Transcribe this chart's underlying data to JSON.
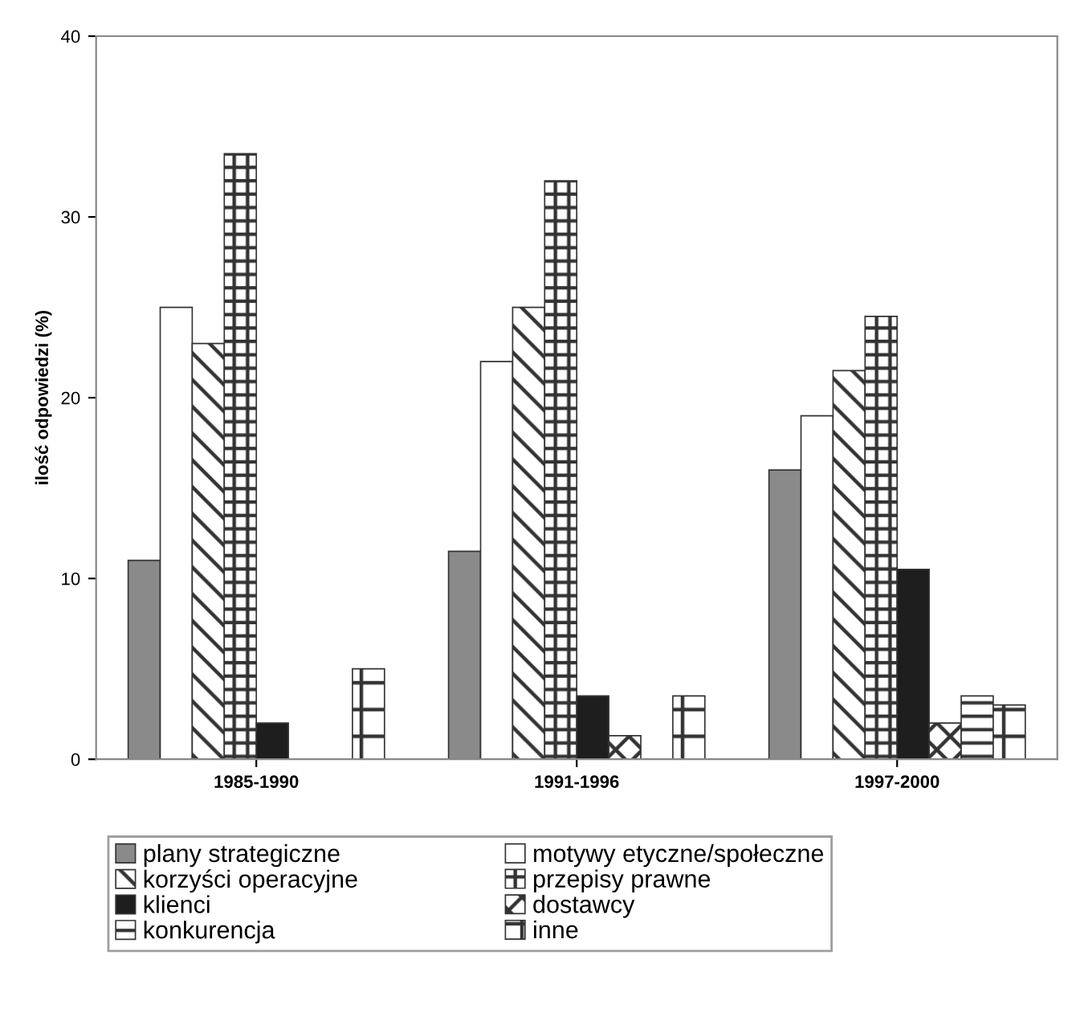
{
  "chart_data": {
    "type": "bar",
    "ylabel": "ilość odpowiedzi (%)",
    "categories": [
      "1985-1990",
      "1991-1996",
      "1997-2000"
    ],
    "series": [
      {
        "name": "plany strategiczne",
        "color": "#8a8a8a",
        "values": [
          11,
          11.5,
          16
        ]
      },
      {
        "name": "motywy etyczne/społeczne",
        "color": "#ffffff",
        "values": [
          25,
          22,
          19
        ]
      },
      {
        "name": "korzyści operacyjne",
        "color": "#333333",
        "values": [
          23,
          25,
          21.5
        ]
      },
      {
        "name": "przepisy prawne",
        "color": "#333333",
        "values": [
          33.5,
          32,
          24.5
        ]
      },
      {
        "name": "klienci",
        "color": "#1e1e1e",
        "values": [
          2,
          3.5,
          10.5
        ]
      },
      {
        "name": "dostawcy",
        "color": "#333333",
        "values": [
          0,
          1.3,
          2
        ]
      },
      {
        "name": "konkurencja",
        "color": "#333333",
        "values": [
          0,
          0,
          3.5
        ]
      },
      {
        "name": "inne",
        "color": "#333333",
        "values": [
          5,
          3.5,
          3
        ]
      }
    ],
    "ylim": [
      0,
      40
    ],
    "yticks": [
      0,
      10,
      20,
      30,
      40
    ],
    "grid": false,
    "legend": "bottom"
  }
}
